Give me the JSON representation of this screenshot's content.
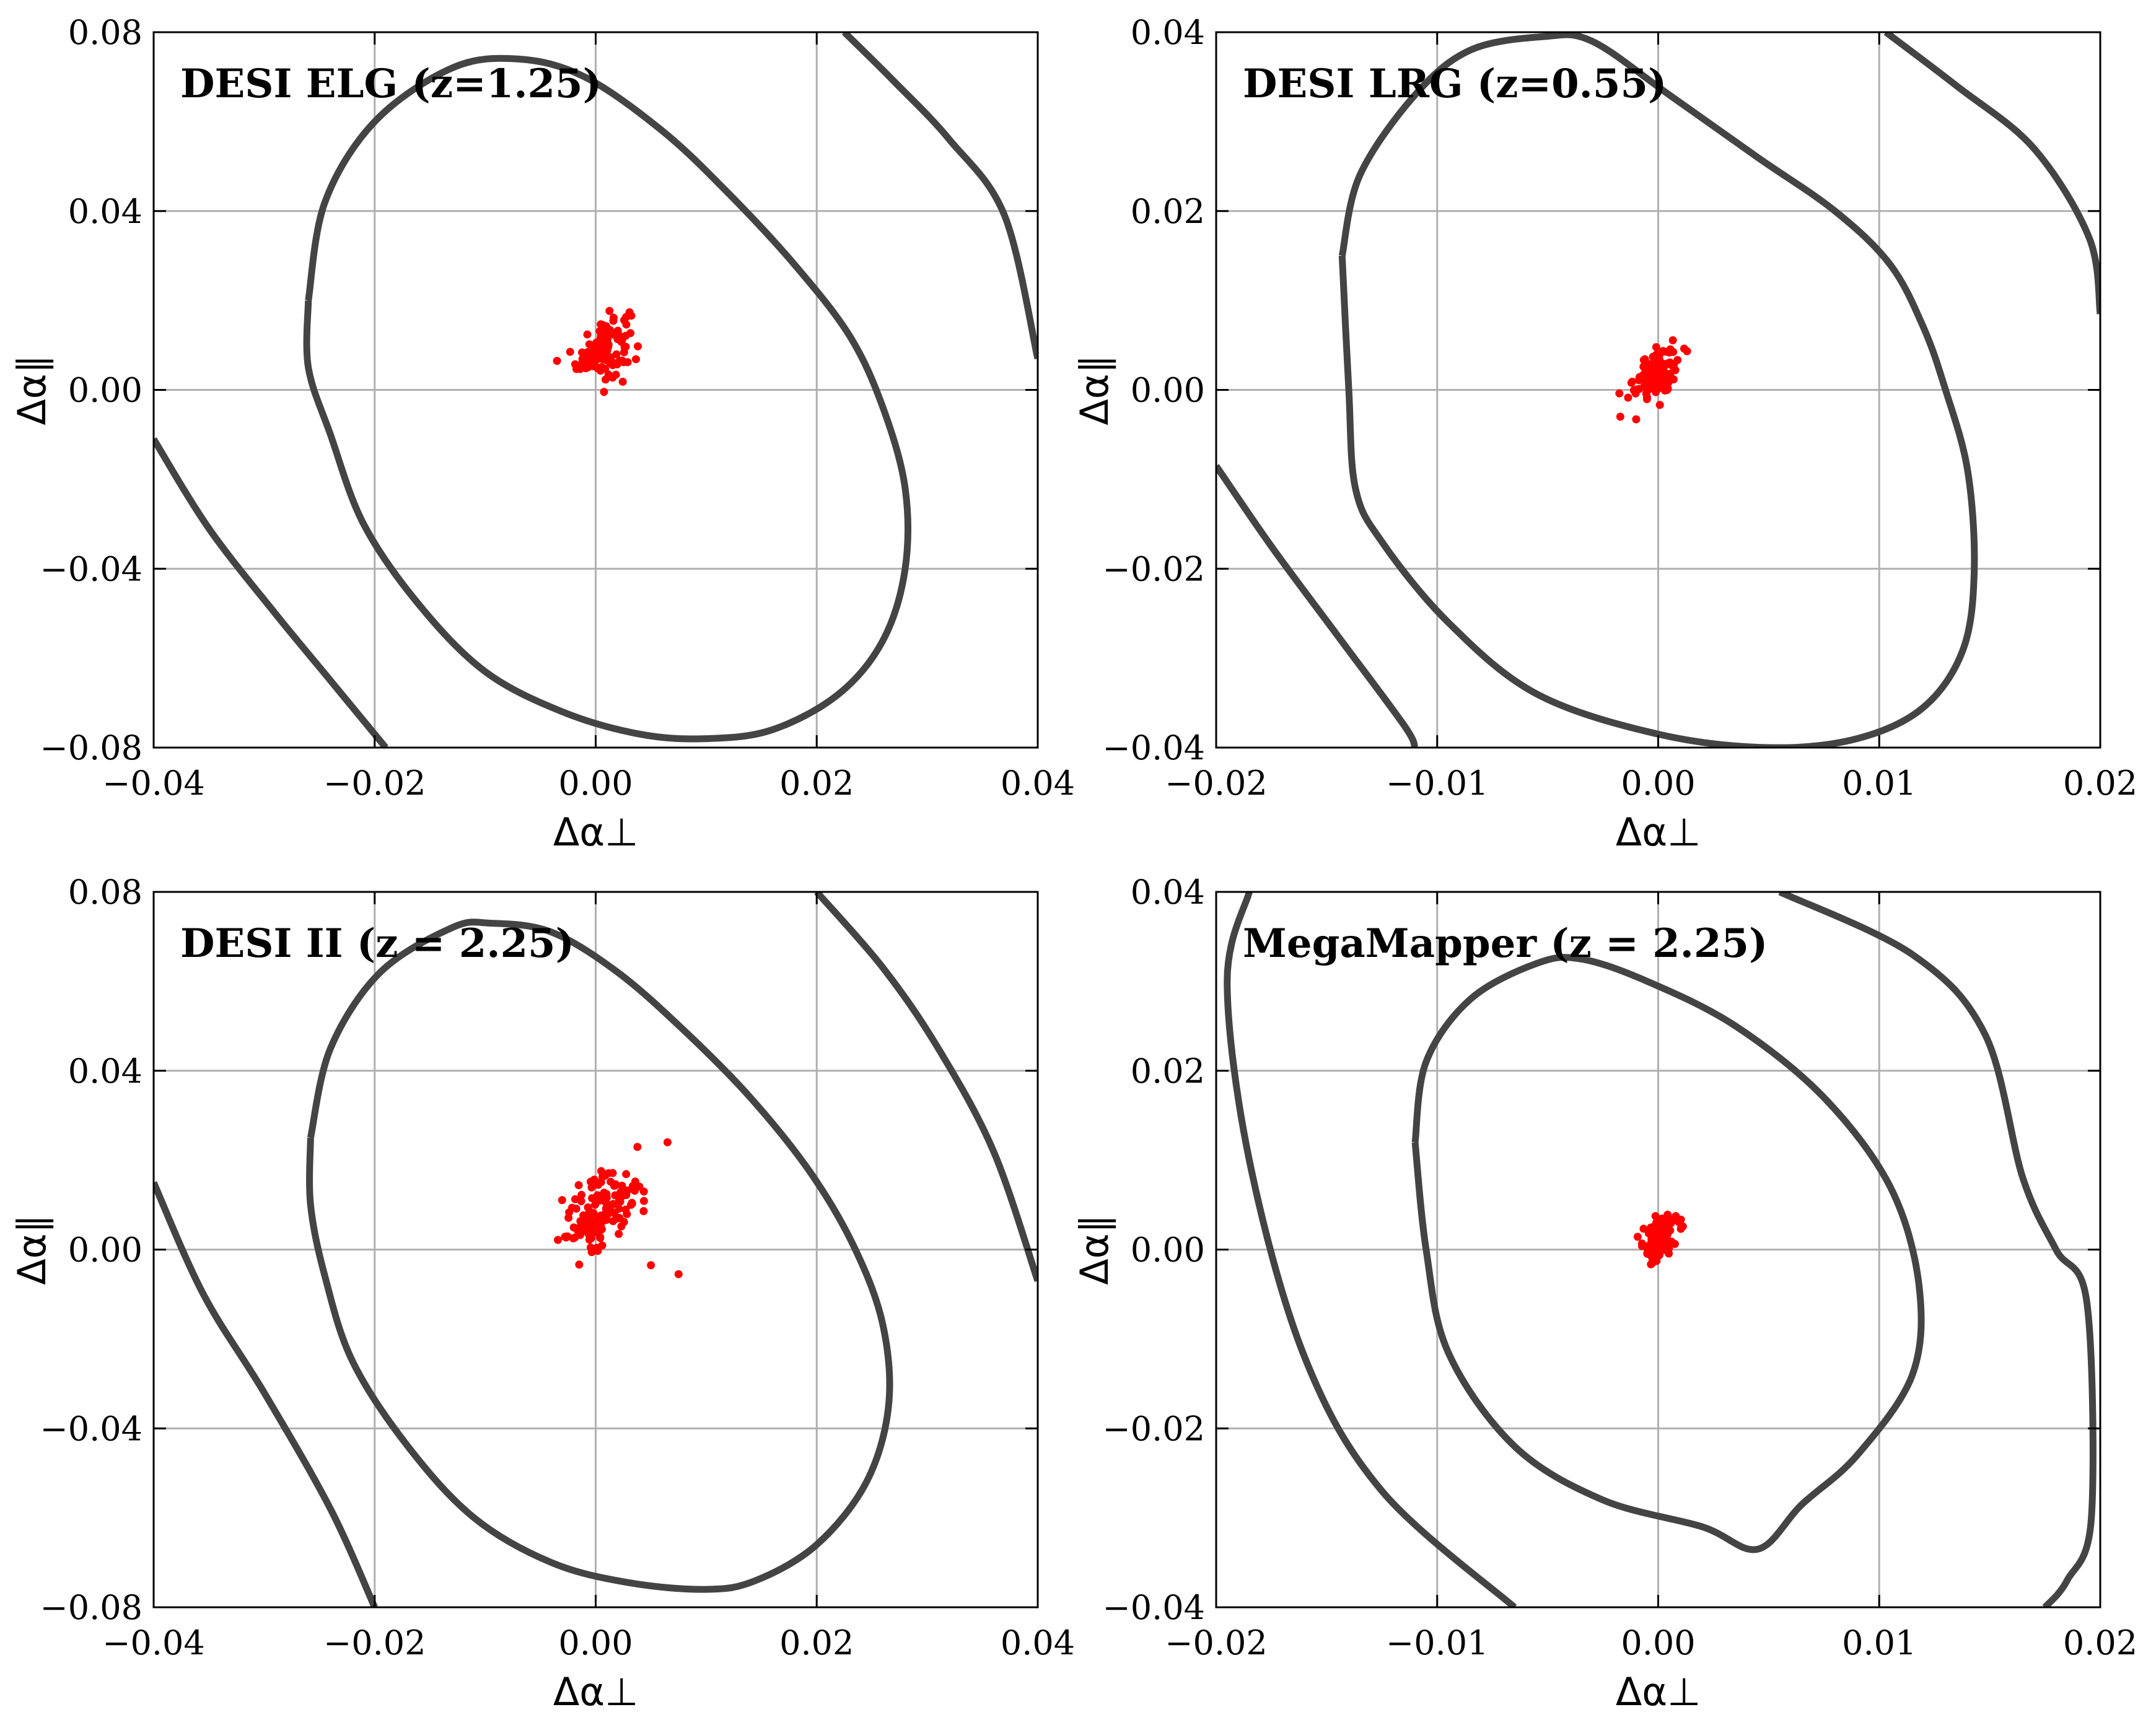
{
  "colors": {
    "contour": "#444444",
    "points": "#ff0000",
    "grid": "#b0b0b0",
    "frame": "#000000"
  },
  "chart_data": [
    {
      "type": "scatter",
      "title": "DESI ELG (z=1.25)",
      "xlabel": "Δα⊥",
      "ylabel": "Δα∥",
      "xlim": [
        -0.04,
        0.04
      ],
      "ylim": [
        -0.08,
        0.08
      ],
      "xticks": [
        -0.04,
        -0.02,
        0.0,
        0.02,
        0.04
      ],
      "xtick_labels": [
        "−0.04",
        "−0.02",
        "0.00",
        "0.02",
        "0.04"
      ],
      "yticks": [
        -0.08,
        -0.04,
        0.0,
        0.04,
        0.08
      ],
      "ytick_labels": [
        "−0.08",
        "−0.04",
        "0.00",
        "0.04",
        "0.08"
      ],
      "grid": true,
      "points_center": [
        0.0007,
        0.0095
      ],
      "points_spread": [
        0.0012,
        0.0035
      ],
      "points_count": 120,
      "contours": [
        [
          [
            -0.026,
            0.02
          ],
          [
            -0.0245,
            0.042
          ],
          [
            -0.02,
            0.06
          ],
          [
            -0.013,
            0.072
          ],
          [
            -0.007,
            0.074
          ],
          [
            -0.001,
            0.07
          ],
          [
            0.006,
            0.058
          ],
          [
            0.012,
            0.044
          ],
          [
            0.018,
            0.028
          ],
          [
            0.023,
            0.012
          ],
          [
            0.026,
            -0.004
          ],
          [
            0.028,
            -0.022
          ],
          [
            0.028,
            -0.04
          ],
          [
            0.026,
            -0.056
          ],
          [
            0.022,
            -0.068
          ],
          [
            0.016,
            -0.076
          ],
          [
            0.01,
            -0.078
          ],
          [
            0.004,
            -0.077
          ],
          [
            -0.003,
            -0.072
          ],
          [
            -0.01,
            -0.063
          ],
          [
            -0.016,
            -0.048
          ],
          [
            -0.021,
            -0.03
          ],
          [
            -0.024,
            -0.01
          ],
          [
            -0.026,
            0.005
          ],
          [
            -0.026,
            0.02
          ]
        ],
        [
          [
            -0.04,
            -0.011
          ],
          [
            -0.035,
            -0.031
          ],
          [
            -0.029,
            -0.05
          ],
          [
            -0.024,
            -0.065
          ],
          [
            -0.019,
            -0.08
          ]
        ],
        [
          [
            0.0225,
            0.08
          ],
          [
            0.027,
            0.069
          ],
          [
            0.032,
            0.056
          ],
          [
            0.037,
            0.039
          ],
          [
            0.04,
            0.007
          ]
        ]
      ]
    },
    {
      "type": "scatter",
      "title": "DESI LRG (z=0.55)",
      "xlabel": "Δα⊥",
      "ylabel": "Δα∥",
      "xlim": [
        -0.02,
        0.02
      ],
      "ylim": [
        -0.04,
        0.04
      ],
      "xticks": [
        -0.02,
        -0.01,
        0.0,
        0.01,
        0.02
      ],
      "xtick_labels": [
        "−0.02",
        "−0.01",
        "0.00",
        "0.01",
        "0.02"
      ],
      "yticks": [
        -0.04,
        -0.02,
        0.0,
        0.02,
        0.04
      ],
      "ytick_labels": [
        "−0.04",
        "−0.02",
        "0.00",
        "0.02",
        "0.04"
      ],
      "grid": true,
      "points_center": [
        -0.0001,
        0.0018
      ],
      "points_spread": [
        0.0005,
        0.0014
      ],
      "points_count": 120,
      "contours": [
        [
          [
            -0.0143,
            0.015
          ],
          [
            -0.0135,
            0.024
          ],
          [
            -0.011,
            0.033
          ],
          [
            -0.0085,
            0.038
          ],
          [
            -0.0052,
            0.0395
          ],
          [
            -0.003,
            0.039
          ],
          [
            0.0005,
            0.033
          ],
          [
            0.0045,
            0.026
          ],
          [
            0.008,
            0.02
          ],
          [
            0.0105,
            0.014
          ],
          [
            0.012,
            0.007
          ],
          [
            0.013,
            0.0
          ],
          [
            0.014,
            -0.009
          ],
          [
            0.0143,
            -0.02
          ],
          [
            0.0138,
            -0.029
          ],
          [
            0.012,
            -0.0355
          ],
          [
            0.009,
            -0.039
          ],
          [
            0.005,
            -0.04
          ],
          [
            0.0,
            -0.0385
          ],
          [
            -0.0055,
            -0.034
          ],
          [
            -0.0095,
            -0.026
          ],
          [
            -0.0125,
            -0.017
          ],
          [
            -0.0137,
            -0.011
          ],
          [
            -0.014,
            0.0
          ],
          [
            -0.0143,
            0.015
          ]
        ],
        [
          [
            -0.02,
            -0.0085
          ],
          [
            -0.0175,
            -0.0175
          ],
          [
            -0.0145,
            -0.0275
          ],
          [
            -0.0115,
            -0.0375
          ],
          [
            -0.011,
            -0.04
          ]
        ],
        [
          [
            0.0103,
            0.04
          ],
          [
            0.0135,
            0.034
          ],
          [
            0.017,
            0.027
          ],
          [
            0.0195,
            0.017
          ],
          [
            0.02,
            0.0085
          ]
        ]
      ]
    },
    {
      "type": "scatter",
      "title": "DESI II (z = 2.25)",
      "xlabel": "Δα⊥",
      "ylabel": "Δα∥",
      "xlim": [
        -0.04,
        0.04
      ],
      "ylim": [
        -0.08,
        0.08
      ],
      "xticks": [
        -0.04,
        -0.02,
        0.0,
        0.02,
        0.04
      ],
      "xtick_labels": [
        "−0.04",
        "−0.02",
        "0.00",
        "0.02",
        "0.04"
      ],
      "yticks": [
        -0.08,
        -0.04,
        0.0,
        0.04,
        0.08
      ],
      "ytick_labels": [
        "−0.08",
        "−0.04",
        "0.00",
        "0.04",
        "0.08"
      ],
      "grid": true,
      "points_center": [
        0.0006,
        0.0085
      ],
      "points_spread": [
        0.0017,
        0.0045
      ],
      "points_count": 140,
      "contours": [
        [
          [
            -0.0258,
            0.025
          ],
          [
            -0.024,
            0.045
          ],
          [
            -0.0195,
            0.062
          ],
          [
            -0.013,
            0.072
          ],
          [
            -0.0095,
            0.073
          ],
          [
            -0.004,
            0.071
          ],
          [
            0.002,
            0.062
          ],
          [
            0.008,
            0.049
          ],
          [
            0.014,
            0.034
          ],
          [
            0.0195,
            0.017
          ],
          [
            0.0235,
            0.0
          ],
          [
            0.026,
            -0.017
          ],
          [
            0.0265,
            -0.035
          ],
          [
            0.0245,
            -0.052
          ],
          [
            0.02,
            -0.066
          ],
          [
            0.0145,
            -0.074
          ],
          [
            0.01,
            -0.076
          ],
          [
            0.003,
            -0.0745
          ],
          [
            -0.004,
            -0.07
          ],
          [
            -0.011,
            -0.06
          ],
          [
            -0.017,
            -0.044
          ],
          [
            -0.022,
            -0.025
          ],
          [
            -0.0245,
            -0.006
          ],
          [
            -0.0258,
            0.01
          ],
          [
            -0.0258,
            0.025
          ]
        ],
        [
          [
            -0.04,
            0.015
          ],
          [
            -0.0355,
            -0.01
          ],
          [
            -0.03,
            -0.032
          ],
          [
            -0.024,
            -0.058
          ],
          [
            -0.02,
            -0.08
          ]
        ],
        [
          [
            0.02,
            0.08
          ],
          [
            0.026,
            0.063
          ],
          [
            0.031,
            0.045
          ],
          [
            0.036,
            0.022
          ],
          [
            0.04,
            -0.007
          ]
        ]
      ],
      "outliers": [
        [
          0.0065,
          0.024
        ],
        [
          0.0075,
          -0.0055
        ],
        [
          0.005,
          -0.0035
        ]
      ]
    },
    {
      "type": "scatter",
      "title": "MegaMapper (z = 2.25)",
      "xlabel": "Δα⊥",
      "ylabel": "Δα∥",
      "xlim": [
        -0.02,
        0.02
      ],
      "ylim": [
        -0.04,
        0.04
      ],
      "xticks": [
        -0.02,
        -0.01,
        0.0,
        0.01,
        0.02
      ],
      "xtick_labels": [
        "−0.02",
        "−0.01",
        "0.00",
        "0.01",
        "0.02"
      ],
      "yticks": [
        -0.04,
        -0.02,
        0.0,
        0.02,
        0.04
      ],
      "ytick_labels": [
        "−0.04",
        "−0.02",
        "0.00",
        "0.02",
        "0.04"
      ],
      "grid": true,
      "points_center": [
        0.0,
        0.0012
      ],
      "points_spread": [
        0.0004,
        0.0013
      ],
      "points_count": 110,
      "contours": [
        [
          [
            -0.011,
            0.012
          ],
          [
            -0.0105,
            0.021
          ],
          [
            -0.0085,
            0.028
          ],
          [
            -0.0055,
            0.032
          ],
          [
            -0.0035,
            0.0325
          ],
          [
            -0.0005,
            0.03
          ],
          [
            0.0035,
            0.025
          ],
          [
            0.0075,
            0.017
          ],
          [
            0.0105,
            0.007
          ],
          [
            0.0118,
            -0.004
          ],
          [
            0.0115,
            -0.014
          ],
          [
            0.009,
            -0.023
          ],
          [
            0.0065,
            -0.0285
          ],
          [
            0.0045,
            -0.0335
          ],
          [
            0.002,
            -0.031
          ],
          [
            -0.0025,
            -0.028
          ],
          [
            -0.0065,
            -0.022
          ],
          [
            -0.0095,
            -0.0115
          ],
          [
            -0.0105,
            0.0
          ],
          [
            -0.011,
            0.012
          ]
        ],
        [
          [
            -0.0185,
            0.04
          ],
          [
            -0.0195,
            0.03
          ],
          [
            -0.0185,
            0.01
          ],
          [
            -0.016,
            -0.012
          ],
          [
            -0.0125,
            -0.027
          ],
          [
            -0.0065,
            -0.04
          ]
        ],
        [
          [
            0.0055,
            0.04
          ],
          [
            0.0115,
            0.033
          ],
          [
            0.0148,
            0.024
          ],
          [
            0.0165,
            0.008
          ],
          [
            0.018,
            0.0
          ],
          [
            0.0194,
            -0.006
          ],
          [
            0.0196,
            -0.03
          ],
          [
            0.0185,
            -0.037
          ],
          [
            0.0175,
            -0.04
          ]
        ]
      ]
    }
  ]
}
